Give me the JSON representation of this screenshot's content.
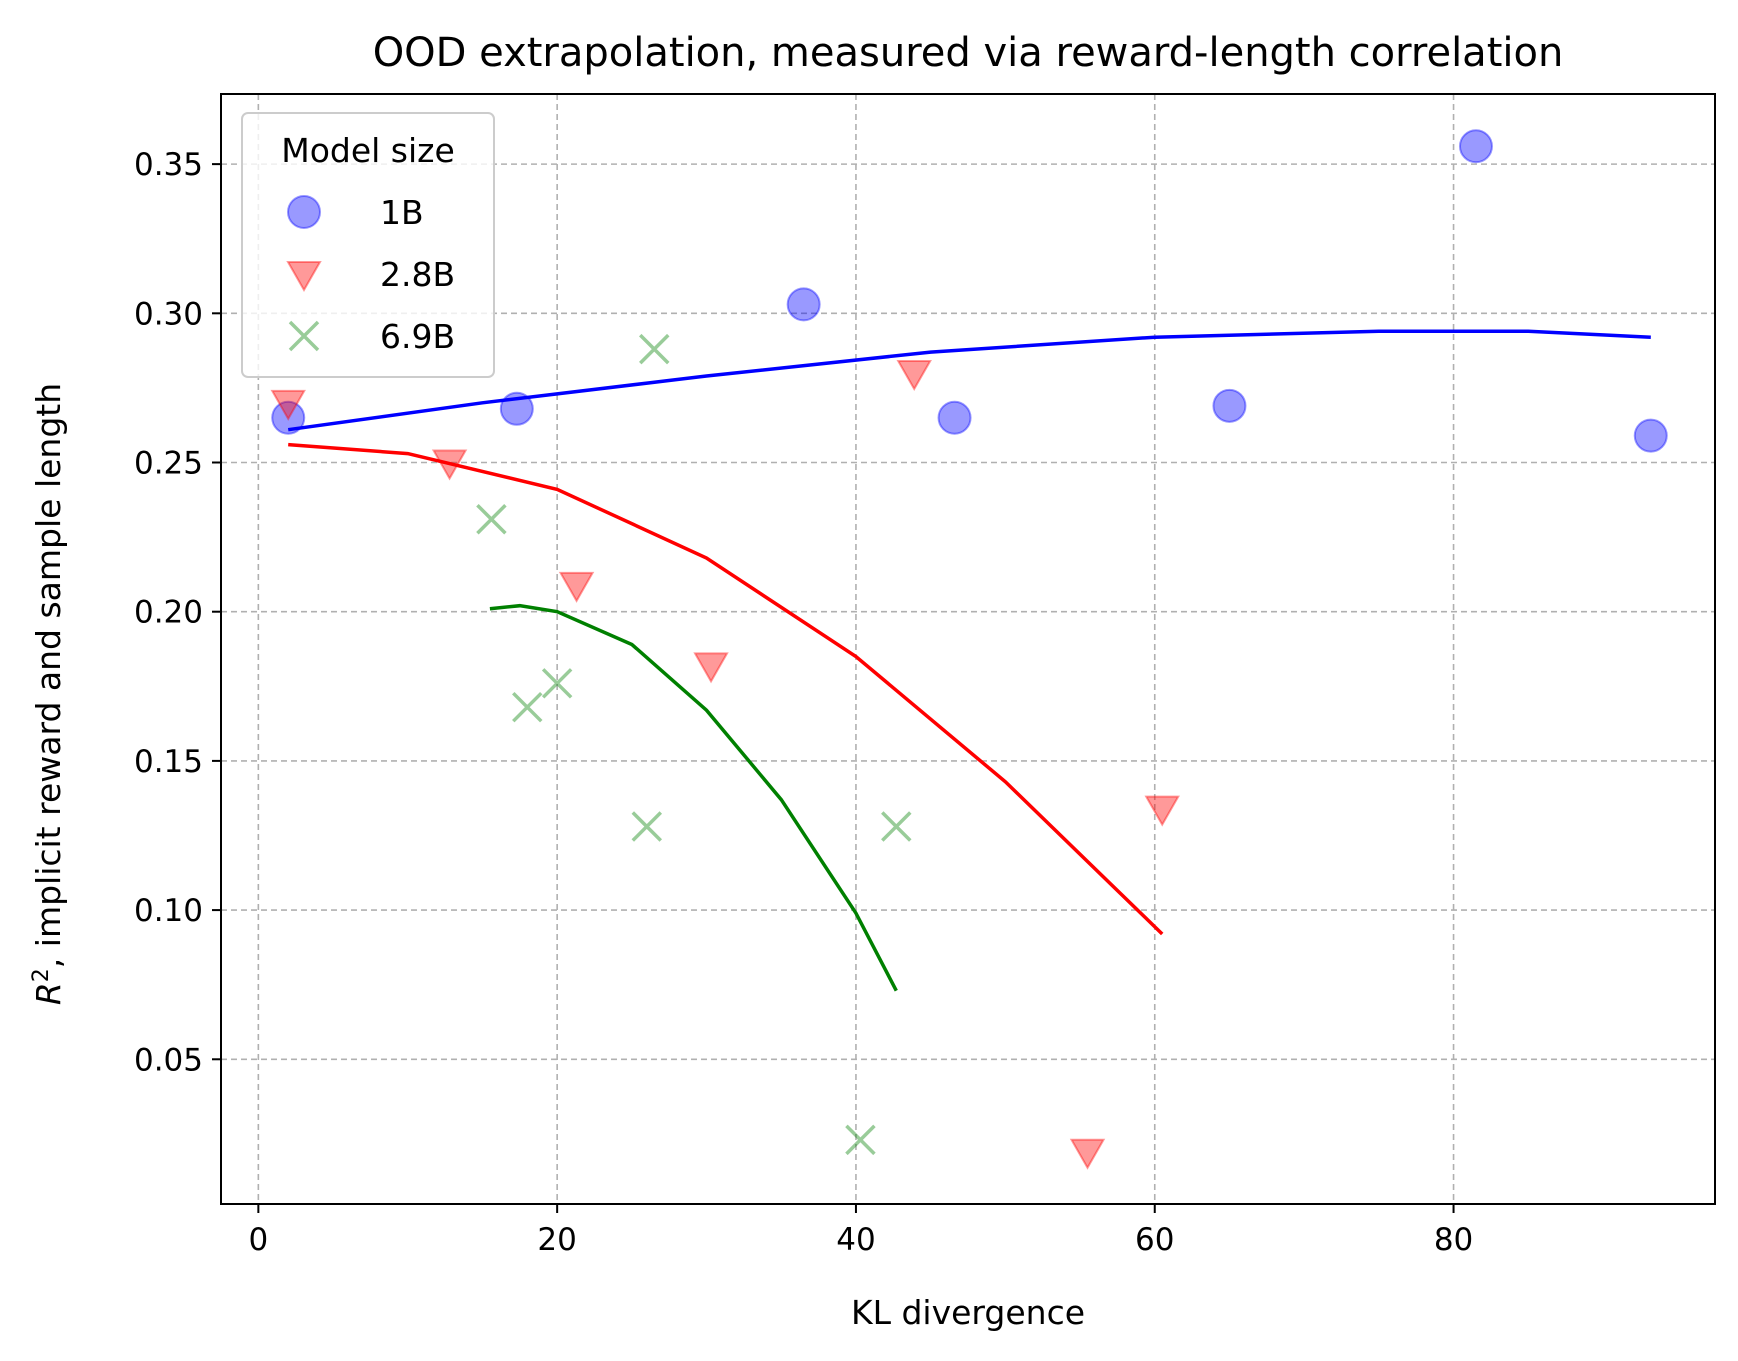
{
  "chart_data": {
    "type": "scatter",
    "title": "OOD extrapolation, measured via reward-length correlation",
    "xlabel": "KL divergence",
    "ylabel": {
      "symbol": "R",
      "superscript": "2",
      "rest": ", implicit reward and sample length"
    },
    "xlim": [
      -2.5,
      97.5
    ],
    "ylim": [
      0.0015,
      0.3735
    ],
    "xticks": [
      0,
      20,
      40,
      60,
      80
    ],
    "xtick_labels": [
      "0",
      "20",
      "40",
      "60",
      "80"
    ],
    "yticks": [
      0.05,
      0.1,
      0.15,
      0.2,
      0.25,
      0.3,
      0.35
    ],
    "ytick_labels": [
      "0.05",
      "0.10",
      "0.15",
      "0.20",
      "0.25",
      "0.30",
      "0.35"
    ],
    "grid": true,
    "legend": {
      "title": "Model size",
      "position": "top-left"
    },
    "series": [
      {
        "name": "1B",
        "marker": "circle",
        "color": "#0000ff",
        "points": [
          [
            2.0,
            0.265
          ],
          [
            17.3,
            0.268
          ],
          [
            36.5,
            0.303
          ],
          [
            46.6,
            0.265
          ],
          [
            65.0,
            0.269
          ],
          [
            81.5,
            0.356
          ],
          [
            93.2,
            0.259
          ]
        ],
        "fit_line": [
          [
            2.0,
            0.261
          ],
          [
            15.0,
            0.27
          ],
          [
            30.0,
            0.279
          ],
          [
            45.0,
            0.287
          ],
          [
            60.0,
            0.292
          ],
          [
            75.0,
            0.294
          ],
          [
            85.0,
            0.294
          ],
          [
            93.2,
            0.292
          ]
        ]
      },
      {
        "name": "2.8B",
        "marker": "triangle-down",
        "color": "#ff0000",
        "points": [
          [
            2.0,
            0.27
          ],
          [
            12.8,
            0.25
          ],
          [
            21.3,
            0.209
          ],
          [
            30.3,
            0.182
          ],
          [
            43.9,
            0.28
          ],
          [
            55.5,
            0.019
          ],
          [
            60.5,
            0.134
          ]
        ],
        "fit_line": [
          [
            2.0,
            0.256
          ],
          [
            10.0,
            0.253
          ],
          [
            20.0,
            0.241
          ],
          [
            30.0,
            0.218
          ],
          [
            40.0,
            0.185
          ],
          [
            50.0,
            0.143
          ],
          [
            60.5,
            0.092
          ]
        ]
      },
      {
        "name": "6.9B",
        "marker": "x",
        "color": "#008000",
        "points": [
          [
            15.6,
            0.231
          ],
          [
            18.0,
            0.168
          ],
          [
            20.0,
            0.176
          ],
          [
            26.0,
            0.128
          ],
          [
            26.5,
            0.288
          ],
          [
            40.3,
            0.023
          ],
          [
            42.7,
            0.128
          ]
        ],
        "fit_line": [
          [
            15.5,
            0.201
          ],
          [
            17.5,
            0.202
          ],
          [
            20.0,
            0.2
          ],
          [
            25.0,
            0.189
          ],
          [
            30.0,
            0.167
          ],
          [
            35.0,
            0.137
          ],
          [
            40.0,
            0.099
          ],
          [
            42.7,
            0.073
          ]
        ]
      }
    ]
  }
}
